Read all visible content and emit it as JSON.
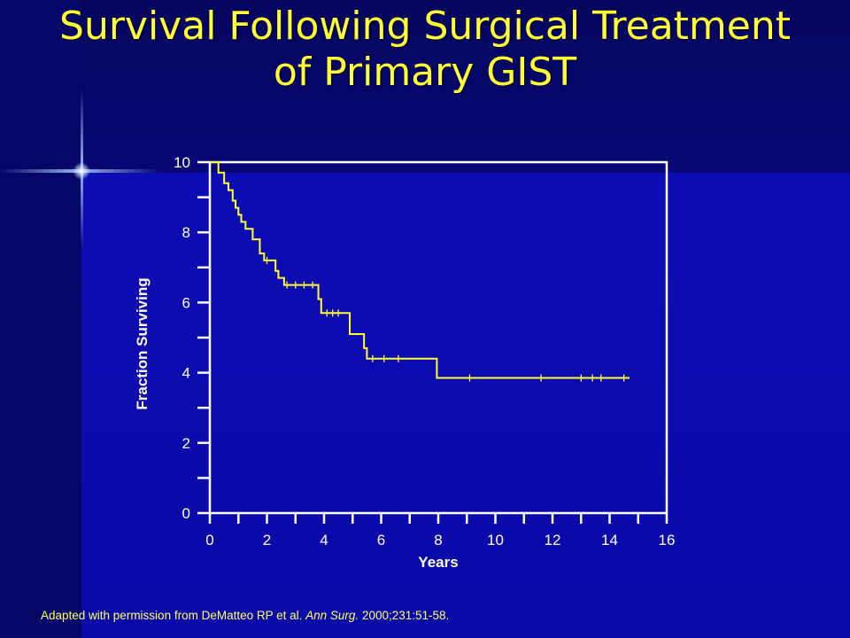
{
  "slide": {
    "title_line1": "Survival Following Surgical Treatment",
    "title_line2": "of Primary GIST",
    "footnote_pre": "Adapted with permission from DeMatteo RP et al. ",
    "footnote_journal": "Ann Surg.",
    "footnote_post": " 2000;231:51-58."
  },
  "colors": {
    "background": "#0a0aa8",
    "title": "#ffff33",
    "curve": "#ffff33",
    "axes": "#ffffff"
  },
  "chart_data": {
    "type": "line",
    "xlabel": "Years",
    "ylabel": "Fraction Surviving",
    "xlim": [
      0,
      16
    ],
    "ylim": [
      0,
      10
    ],
    "xticks": [
      0,
      2,
      4,
      6,
      8,
      10,
      12,
      14,
      16
    ],
    "yticks": [
      0,
      2,
      4,
      6,
      8,
      10
    ],
    "grid": false,
    "series": [
      {
        "step": true,
        "x": [
          0,
          0.3,
          0.5,
          0.65,
          0.8,
          0.9,
          1.0,
          1.1,
          1.25,
          1.5,
          1.75,
          1.9,
          2.2,
          2.3,
          2.4,
          2.6,
          3.8,
          3.9,
          4.9,
          5.4,
          5.5,
          5.55,
          7.95,
          14.7
        ],
        "y": [
          10,
          9.7,
          9.4,
          9.2,
          8.9,
          8.7,
          8.5,
          8.3,
          8.1,
          7.8,
          7.4,
          7.2,
          7.2,
          6.9,
          6.7,
          6.5,
          6.1,
          5.7,
          5.1,
          4.7,
          4.4,
          4.4,
          3.85,
          3.85
        ]
      }
    ],
    "censor_x": [
      2.0,
      2.7,
      3.0,
      3.3,
      3.6,
      4.1,
      4.3,
      4.5,
      5.7,
      6.1,
      6.6,
      9.1,
      11.6,
      13.0,
      13.4,
      13.7,
      14.5
    ]
  }
}
